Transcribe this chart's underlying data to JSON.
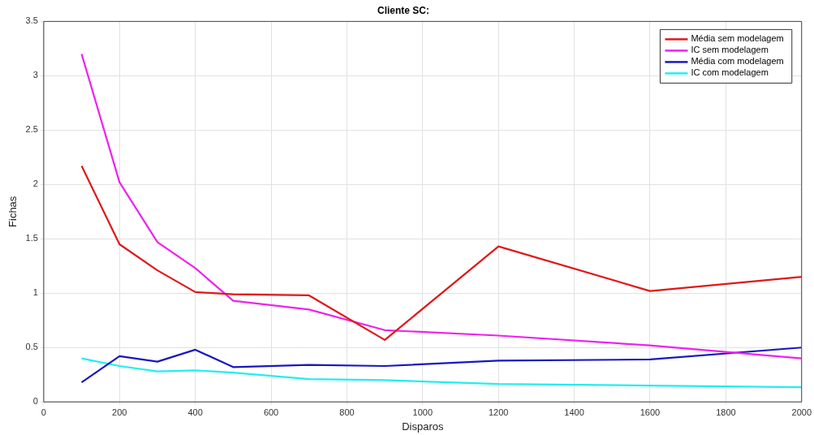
{
  "chart_data": {
    "type": "line",
    "title": "Cliente SC:",
    "xlabel": "Disparos",
    "ylabel": "Fichas",
    "x": [
      100,
      200,
      300,
      400,
      500,
      700,
      900,
      1200,
      1600,
      2000
    ],
    "series": [
      {
        "name": "Média sem modelagem",
        "color": "#e01818",
        "values": [
          2.17,
          1.45,
          1.21,
          1.01,
          0.99,
          0.98,
          0.57,
          1.43,
          1.02,
          1.15
        ]
      },
      {
        "name": "IC sem modelagem",
        "color": "#ee22ee",
        "values": [
          3.2,
          2.02,
          1.47,
          1.23,
          0.93,
          0.85,
          0.66,
          0.61,
          0.52,
          0.4
        ]
      },
      {
        "name": "Média com modelagem",
        "color": "#1818c0",
        "values": [
          0.18,
          0.42,
          0.37,
          0.48,
          0.32,
          0.34,
          0.33,
          0.38,
          0.39,
          0.5
        ]
      },
      {
        "name": "IC com modelagem",
        "color": "#22eeee",
        "values": [
          0.4,
          0.33,
          0.28,
          0.29,
          0.27,
          0.21,
          0.2,
          0.165,
          0.15,
          0.135
        ]
      }
    ],
    "xlim": [
      0,
      2000
    ],
    "xticks": [
      0,
      200,
      400,
      600,
      800,
      1000,
      1200,
      1400,
      1600,
      1800,
      2000
    ],
    "ylim": [
      0,
      3.5
    ],
    "yticks": [
      0,
      0.5,
      1,
      1.5,
      2,
      2.5,
      3,
      3.5
    ],
    "grid": true,
    "legend": "top right",
    "marker": "none",
    "line_style": "solid"
  }
}
